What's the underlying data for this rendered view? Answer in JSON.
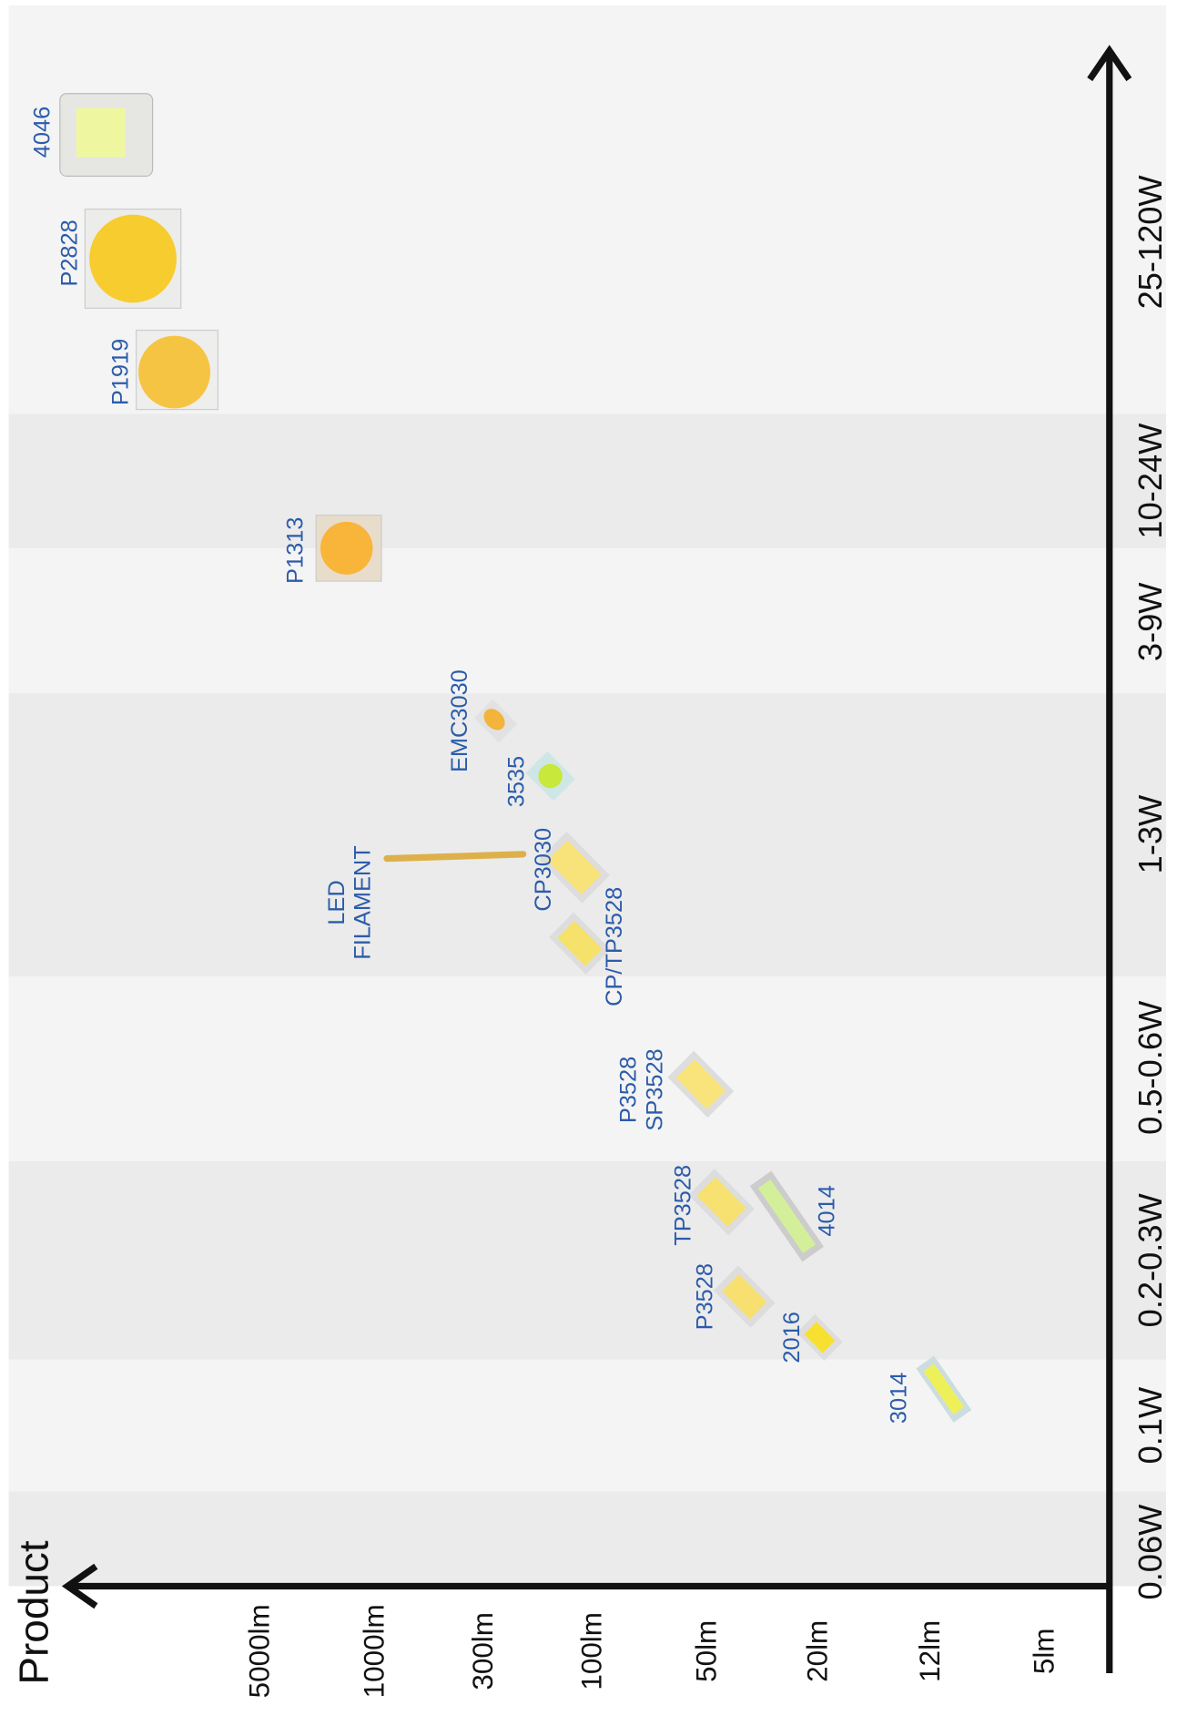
{
  "axes": {
    "lumen_title": "Product",
    "lumen_labels": [
      "5000lm",
      "1000lm",
      "300lm",
      "100lm",
      "50lm",
      "20lm",
      "12lm",
      "5lm"
    ],
    "power_bands": [
      "25-120W",
      "10-24W",
      "3-9W",
      "1-3W",
      "0.5-0.6W",
      "0.2-0.3W",
      "0.1W",
      "0.06W"
    ]
  },
  "products": [
    {
      "lines": [
        "4046"
      ]
    },
    {
      "lines": [
        "P2828"
      ]
    },
    {
      "lines": [
        "P1919"
      ]
    },
    {
      "lines": [
        "P1313"
      ]
    },
    {
      "lines": [
        "EMC3030"
      ]
    },
    {
      "lines": [
        "3535"
      ]
    },
    {
      "lines": [
        "LED",
        "FILAMENT"
      ]
    },
    {
      "lines": [
        "CP3030"
      ]
    },
    {
      "lines": [
        "CP/TP3528"
      ]
    },
    {
      "lines": [
        "P3528",
        "SP3528"
      ]
    },
    {
      "lines": [
        "TP3528"
      ]
    },
    {
      "lines": [
        "4014"
      ]
    },
    {
      "lines": [
        "P3528"
      ]
    },
    {
      "lines": [
        "2016"
      ]
    },
    {
      "lines": [
        "3014"
      ]
    }
  ]
}
